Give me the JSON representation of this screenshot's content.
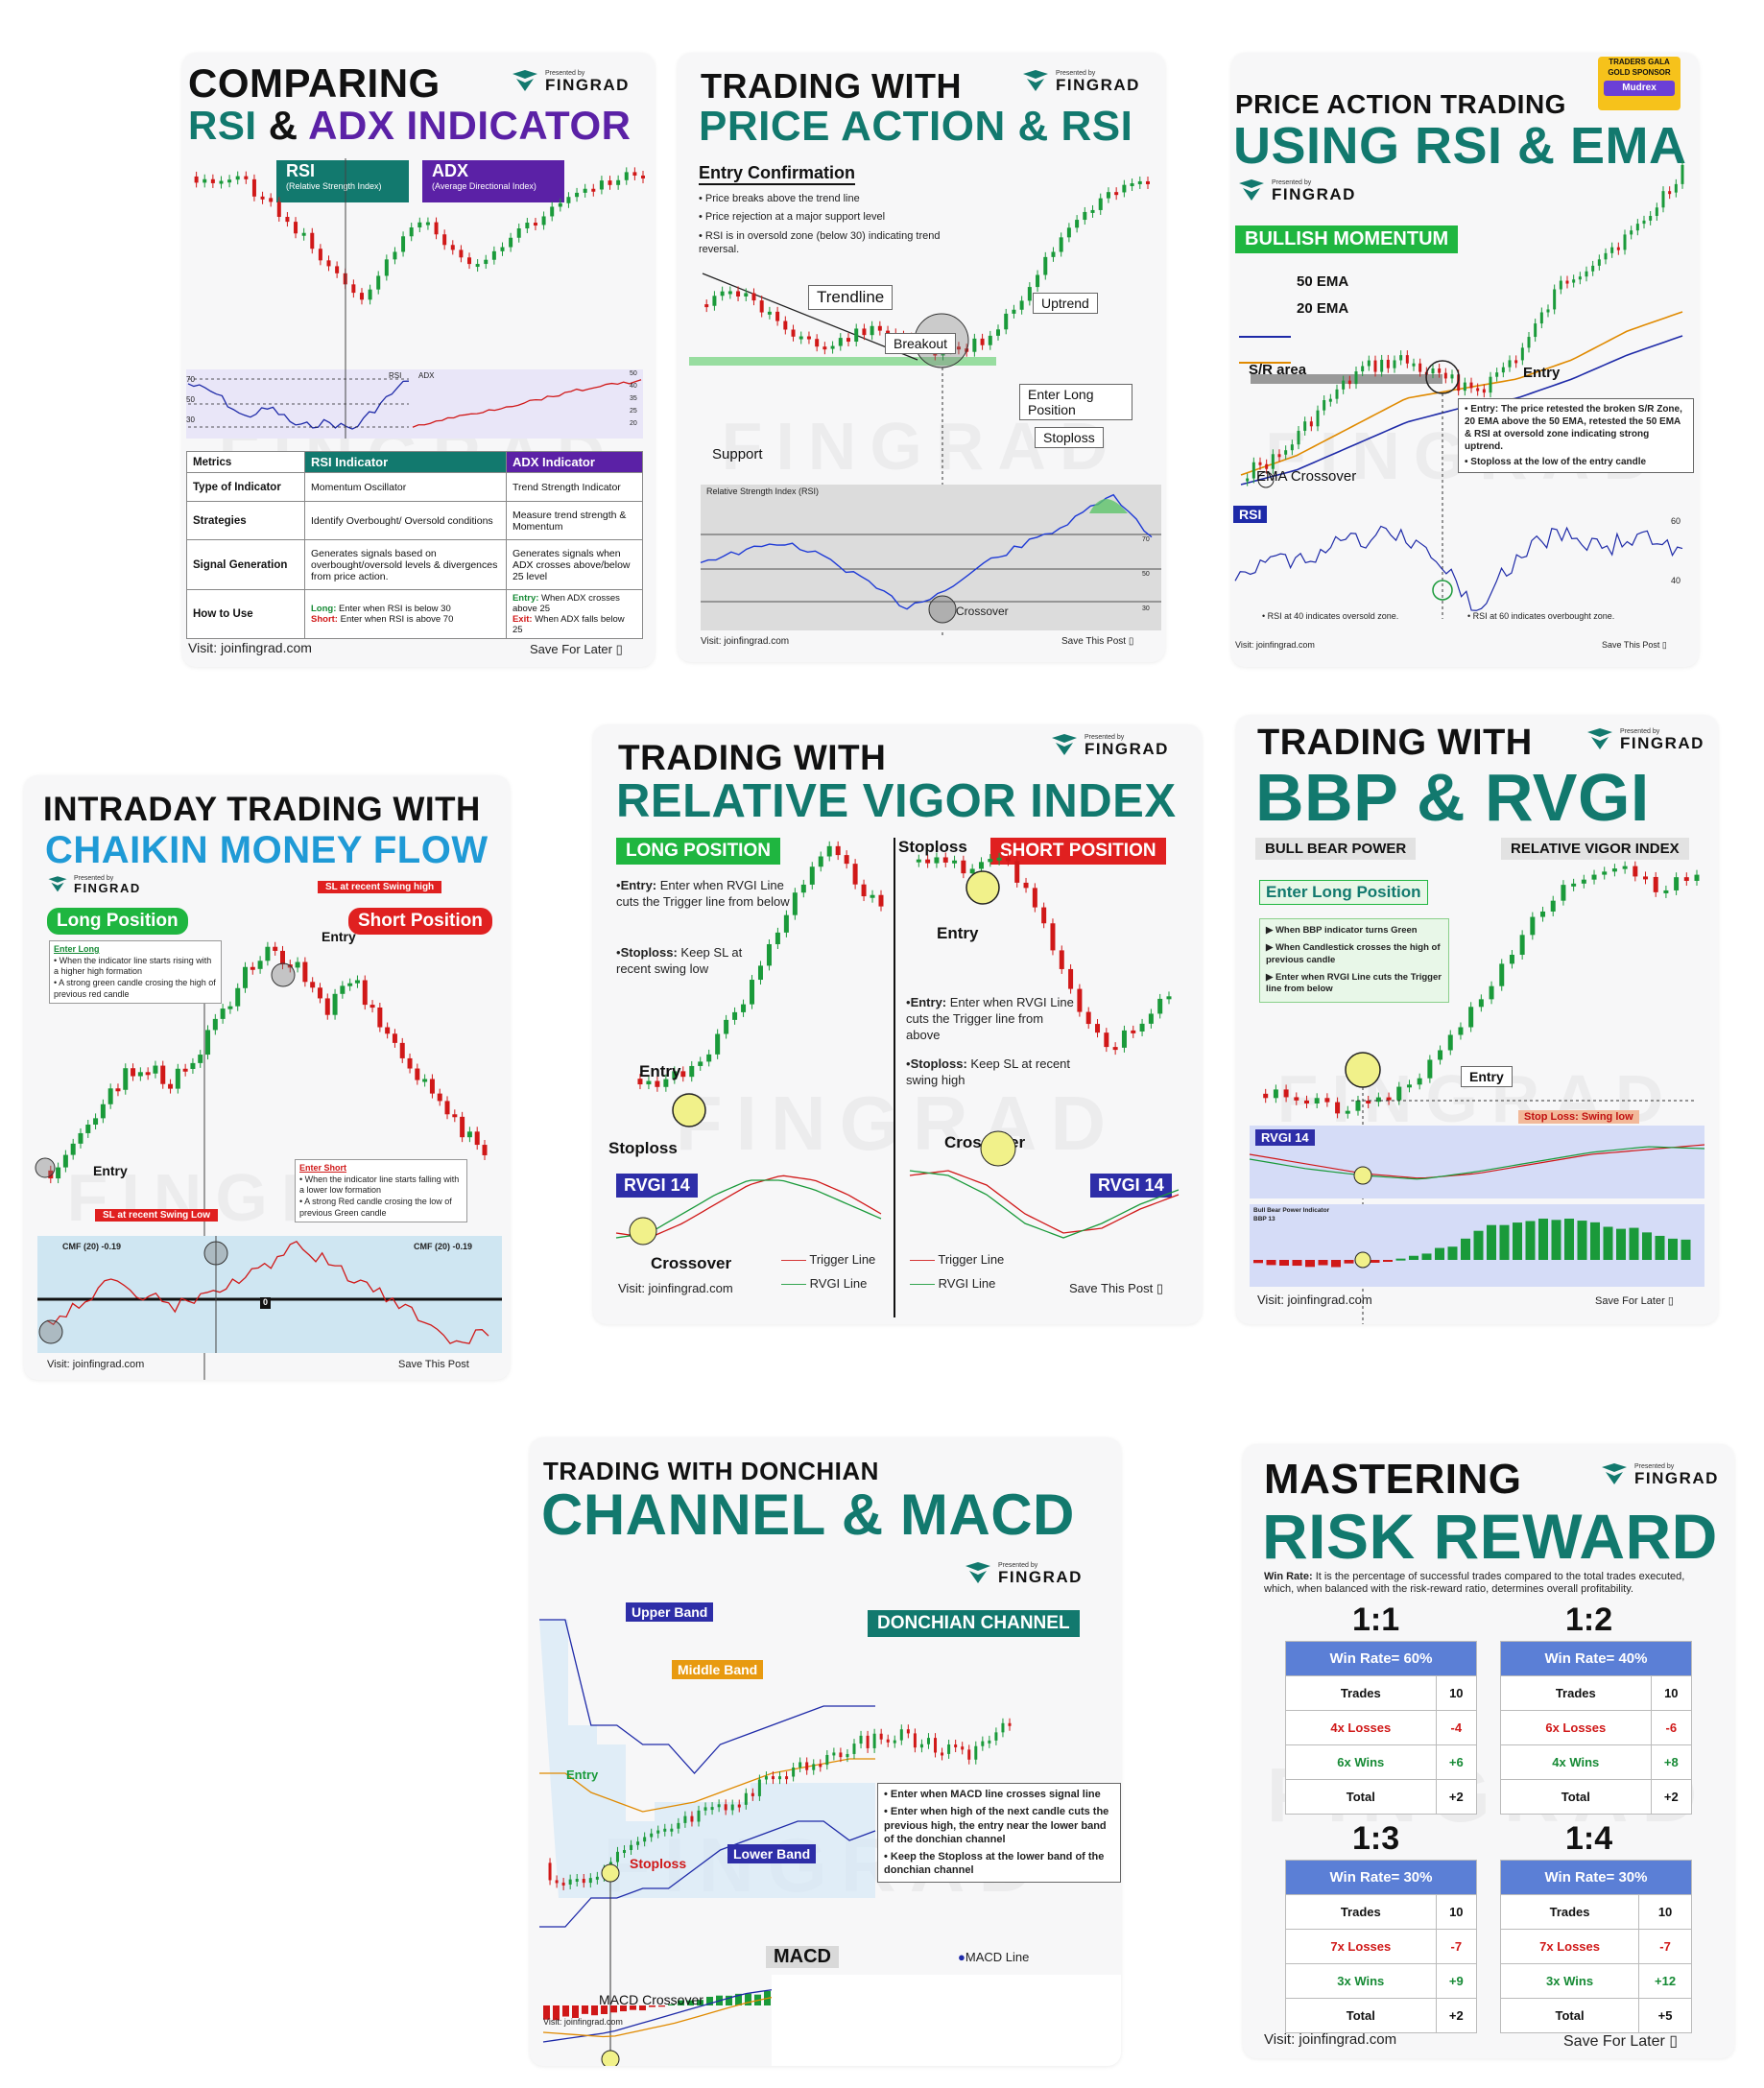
{
  "colors": {
    "teal": "#12796e",
    "purple": "#5b21a6",
    "green": "#1a9a3a",
    "red": "#d01818",
    "blue": "#1e2aa8",
    "orange": "#e08a00"
  },
  "brand": {
    "presented_by": "Presented by",
    "name": "FINGRAD",
    "site": "Visit: joinfingrad.com",
    "site_short": "Visit: joinfingrad.com"
  },
  "card1": {
    "title1": "COMPARING",
    "title2a": "RSI",
    "title2b": "&",
    "title2c": "ADX INDICATOR",
    "rsi_badge": "RSI",
    "rsi_sub": "(Relative Strength Index)",
    "adx_badge": "ADX",
    "adx_sub": "(Average Directional Index)",
    "rsi_small": "RSI",
    "adx_small": "ADX",
    "rsi_ticks": [
      "70",
      "50",
      "30"
    ],
    "adx_ticks": [
      "50",
      "40",
      "35",
      "25",
      "20"
    ],
    "table_head": [
      "Metrics",
      "RSI Indicator",
      "ADX Indicator"
    ],
    "rows": [
      [
        "Type of Indicator",
        "Momentum Oscillator",
        "Trend Strength Indicator"
      ],
      [
        "Strategies",
        "Identify Overbought/ Oversold conditions",
        "Measure trend strength & Momentum"
      ],
      [
        "Signal Generation",
        "Generates signals based on overbought/oversold levels & divergences from price action.",
        "Generates signals when ADX crosses above/below 25 level"
      ]
    ],
    "how_key": "How to Use",
    "how_rsi_long_k": "Long:",
    "how_rsi_long": "Enter when RSI is below 30",
    "how_rsi_short_k": "Short:",
    "how_rsi_short": "Enter when RSI is above 70",
    "how_adx_entry_k": "Entry:",
    "how_adx_entry": "When ADX crosses above 25",
    "how_adx_exit_k": "Exit:",
    "how_adx_exit": "When ADX falls below 25",
    "footer_right": "Save For Later"
  },
  "card2": {
    "title1": "TRADING WITH",
    "title2": "PRICE ACTION & RSI",
    "section": "Entry Confirmation",
    "bullets": [
      "Price breaks above the trend line",
      "Price rejection at a  major support level",
      "RSI is in oversold zone (below 30) indicating trend reversal."
    ],
    "trendline": "Trendline",
    "breakout": "Breakout",
    "uptrend": "Uptrend",
    "enter_long": "Enter Long Position",
    "stoploss": "Stoploss",
    "support": "Support",
    "rsi_title": "Relative Strength Index (RSI)",
    "crossover": "Crossover",
    "ticks": [
      "70",
      "50",
      "30"
    ],
    "footer_left": "Visit: joinfingrad.com",
    "footer_right": "Save This Post"
  },
  "card3": {
    "sponsor1": "TRADERS GALA",
    "sponsor2": "GOLD SPONSOR",
    "sponsor3": "Mudrex",
    "title1": "PRICE ACTION TRADING",
    "title2": "USING RSI & EMA",
    "badge": "BULLISH MOMENTUM",
    "ema50": "50 EMA",
    "ema20": "20 EMA",
    "sr": "S/R area",
    "entry": "Entry",
    "note1": "Entry: The price retested the broken S/R Zone, 20 EMA above the 50 EMA, retested the 50 EMA & RSI at oversold zone indicating strong uptrend.",
    "note2": "Stoploss at the low of the entry candle",
    "ema_cross": "EMA Crossover",
    "rsi": "RSI",
    "t60": "60",
    "t40": "40",
    "f1": "RSI at 40 indicates oversold zone.",
    "f2": "RSI at 60 indicates overbought zone.",
    "footer_left": "Visit: joinfingrad.com",
    "footer_right": "Save This Post"
  },
  "card4": {
    "title1": "INTRADAY TRADING WITH",
    "title2": "CHAIKIN MONEY FLOW",
    "long": "Long Position",
    "short": "Short Position",
    "enter_long": "Enter Long",
    "long_b": [
      "When the indicator line starts rising with a higher high formation",
      "A strong green candle crosing the high of previous red candle"
    ],
    "enter_short": "Enter Short",
    "short_b": [
      "When the indicator line starts falling with a lower low formation",
      "A strong Red candle crosing the low of previous Green candle"
    ],
    "sl_high": "SL at recent Swing high",
    "sl_low": "SL at recent Swing Low",
    "entry": "Entry",
    "cmf": "CMF (20)  -0.19",
    "zero": "0",
    "footer_left": "Visit: joinfingrad.com",
    "footer_right": "Save This Post"
  },
  "card5": {
    "title1": "TRADING WITH",
    "title2": "RELATIVE VIGOR INDEX",
    "long": "LONG POSITION",
    "short": "SHORT POSITION",
    "long_entry_k": "Entry:",
    "long_entry": "Enter when RVGI Line cuts the Trigger line from below",
    "long_sl_k": "Stoploss:",
    "long_sl": "Keep SL at recent swing low",
    "short_entry_k": "Entry:",
    "short_entry": "Enter when RVGI Line cuts the Trigger line from above",
    "short_sl_k": "Stoploss:",
    "short_sl": "Keep SL at recent swing high",
    "entry": "Entry",
    "stoploss": "Stoploss",
    "rvgi": "RVGI 14",
    "crossover": "Crossover",
    "trigger": "Trigger Line",
    "rvgi_line": "RVGI Line",
    "footer_left": "Visit: joinfingrad.com",
    "footer_right": "Save This Post"
  },
  "card6": {
    "title1": "TRADING WITH",
    "title2": "BBP & RVGI",
    "sub1": "BULL BEAR POWER",
    "sub2": "RELATIVE VIGOR INDEX",
    "enter_long": "Enter Long Position",
    "bullets": [
      "When BBP indicator turns Green",
      "When Candlestick crosses the high of previous candle",
      "Enter when RVGI Line cuts the Trigger line from below"
    ],
    "entry": "Entry",
    "stop": "Stop Loss: Swing low",
    "rvgi": "RVGI 14",
    "bbp1": "Bull Bear Power Indicator",
    "bbp2": "BBP 13",
    "footer_left": "Visit: joinfingrad.com",
    "footer_right": "Save For Later"
  },
  "card7": {
    "title1": "TRADING WITH DONCHIAN",
    "title2": "CHANNEL & MACD",
    "badge": "DONCHIAN CHANNEL",
    "upper": "Upper Band",
    "middle": "Middle Band",
    "lower": "Lower Band",
    "entry": "Entry",
    "stoploss": "Stoploss",
    "notes": [
      "Enter when MACD line crosses signal line",
      "Enter when high of the next candle cuts the previous high, the entry near the lower band of the donchian channel",
      "Keep the Stoploss at the lower band of the donchian channel"
    ],
    "macd": "MACD",
    "macd_line": "MACD Line",
    "macd_cross": "MACD Crossover",
    "footer_left": "Visit: joinfingrad.com"
  },
  "card8": {
    "title1": "MASTERING",
    "title2": "RISK REWARD",
    "winrate_k": "Win Rate:",
    "winrate": "It is the percentage of successful trades compared to the total trades executed, which, when balanced with the risk-reward ratio, determines overall profitability.",
    "tables": [
      {
        "ratio": "1:1",
        "head": "Win Rate= 60%",
        "rows": [
          [
            "Trades",
            "10"
          ],
          [
            "4x Losses",
            "-4"
          ],
          [
            "6x Wins",
            "+6"
          ],
          [
            "Total",
            "+2"
          ]
        ]
      },
      {
        "ratio": "1:2",
        "head": "Win Rate= 40%",
        "rows": [
          [
            "Trades",
            "10"
          ],
          [
            "6x Losses",
            "-6"
          ],
          [
            "4x Wins",
            "+8"
          ],
          [
            "Total",
            "+2"
          ]
        ]
      },
      {
        "ratio": "1:3",
        "head": "Win Rate= 30%",
        "rows": [
          [
            "Trades",
            "10"
          ],
          [
            "7x Losses",
            "-7"
          ],
          [
            "3x Wins",
            "+9"
          ],
          [
            "Total",
            "+2"
          ]
        ]
      },
      {
        "ratio": "1:4",
        "head": "Win Rate= 30%",
        "rows": [
          [
            "Trades",
            "10"
          ],
          [
            "7x Losses",
            "-7"
          ],
          [
            "3x Wins",
            "+12"
          ],
          [
            "Total",
            "+5"
          ]
        ]
      }
    ],
    "footer_left": "Visit: joinfingrad.com",
    "footer_right": "Save For Later"
  }
}
